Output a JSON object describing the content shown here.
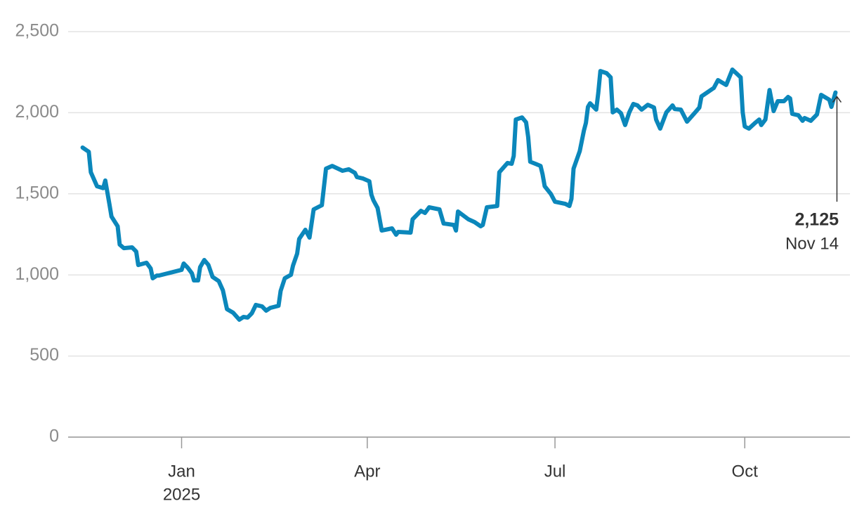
{
  "chart_data": {
    "type": "line",
    "x": [
      "2024-11-14",
      "2024-11-17",
      "2024-11-18",
      "2024-11-21",
      "2024-11-24",
      "2024-11-25",
      "2024-11-27",
      "2024-11-28",
      "2024-12-01",
      "2024-12-02",
      "2024-12-04",
      "2024-12-08",
      "2024-12-10",
      "2024-12-11",
      "2024-12-15",
      "2024-12-17",
      "2024-12-18",
      "2024-12-20",
      "2024-12-21",
      "2025-01-01",
      "2025-01-02",
      "2025-01-04",
      "2025-01-06",
      "2025-01-07",
      "2025-01-09",
      "2025-01-10",
      "2025-01-12",
      "2025-01-14",
      "2025-01-16",
      "2025-01-19",
      "2025-01-21",
      "2025-01-23",
      "2025-01-26",
      "2025-01-29",
      "2025-01-31",
      "2025-02-02",
      "2025-02-04",
      "2025-02-06",
      "2025-02-09",
      "2025-02-11",
      "2025-02-13",
      "2025-02-17",
      "2025-02-18",
      "2025-02-20",
      "2025-02-23",
      "2025-02-24",
      "2025-02-26",
      "2025-02-27",
      "2025-03-02",
      "2025-03-04",
      "2025-03-06",
      "2025-03-10",
      "2025-03-12",
      "2025-03-15",
      "2025-03-20",
      "2025-03-23",
      "2025-03-26",
      "2025-03-27",
      "2025-03-30",
      "2025-04-02",
      "2025-04-03",
      "2025-04-04",
      "2025-04-06",
      "2025-04-08",
      "2025-04-13",
      "2025-04-15",
      "2025-04-16",
      "2025-04-22",
      "2025-04-23",
      "2025-04-27",
      "2025-04-29",
      "2025-05-01",
      "2025-05-06",
      "2025-05-08",
      "2025-05-13",
      "2025-05-14",
      "2025-05-15",
      "2025-05-20",
      "2025-05-23",
      "2025-05-26",
      "2025-05-27",
      "2025-05-29",
      "2025-06-03",
      "2025-06-04",
      "2025-06-08",
      "2025-06-10",
      "2025-06-11",
      "2025-06-12",
      "2025-06-15",
      "2025-06-17",
      "2025-06-18",
      "2025-06-19",
      "2025-06-24",
      "2025-06-25",
      "2025-06-26",
      "2025-06-29",
      "2025-07-01",
      "2025-07-06",
      "2025-07-08",
      "2025-07-09",
      "2025-07-10",
      "2025-07-13",
      "2025-07-15",
      "2025-07-16",
      "2025-07-17",
      "2025-07-18",
      "2025-07-21",
      "2025-07-22",
      "2025-07-23",
      "2025-07-26",
      "2025-07-28",
      "2025-07-29",
      "2025-07-31",
      "2025-08-02",
      "2025-08-04",
      "2025-08-06",
      "2025-08-08",
      "2025-08-10",
      "2025-08-12",
      "2025-08-15",
      "2025-08-18",
      "2025-08-19",
      "2025-08-21",
      "2025-08-24",
      "2025-08-27",
      "2025-08-28",
      "2025-08-31",
      "2025-09-03",
      "2025-09-07",
      "2025-09-09",
      "2025-09-10",
      "2025-09-13",
      "2025-09-16",
      "2025-09-18",
      "2025-09-22",
      "2025-09-25",
      "2025-09-29",
      "2025-09-30",
      "2025-10-01",
      "2025-10-03",
      "2025-10-06",
      "2025-10-08",
      "2025-10-09",
      "2025-10-11",
      "2025-10-13",
      "2025-10-15",
      "2025-10-17",
      "2025-10-20",
      "2025-10-22",
      "2025-10-23",
      "2025-10-24",
      "2025-10-27",
      "2025-10-29",
      "2025-10-30",
      "2025-11-02",
      "2025-11-05",
      "2025-11-07",
      "2025-11-11",
      "2025-11-12",
      "2025-11-14"
    ],
    "series": [
      {
        "color": "#0b87bb",
        "values": [
          1785,
          1759,
          1633,
          1547,
          1535,
          1582,
          1438,
          1360,
          1300,
          1187,
          1165,
          1170,
          1144,
          1061,
          1075,
          1040,
          979,
          996,
          996,
          1031,
          1070,
          1044,
          1010,
          966,
          966,
          1048,
          1092,
          1061,
          988,
          962,
          905,
          789,
          767,
          724,
          741,
          737,
          763,
          815,
          806,
          780,
          797,
          810,
          901,
          979,
          1001,
          1057,
          1131,
          1222,
          1278,
          1230,
          1404,
          1430,
          1655,
          1672,
          1642,
          1651,
          1629,
          1603,
          1594,
          1577,
          1495,
          1460,
          1413,
          1274,
          1287,
          1248,
          1265,
          1261,
          1343,
          1395,
          1382,
          1417,
          1404,
          1317,
          1308,
          1274,
          1391,
          1343,
          1326,
          1300,
          1308,
          1417,
          1425,
          1633,
          1690,
          1685,
          1733,
          1958,
          1971,
          1941,
          1850,
          1698,
          1672,
          1620,
          1547,
          1499,
          1451,
          1438,
          1425,
          1469,
          1655,
          1763,
          1889,
          1937,
          2036,
          2058,
          2019,
          2123,
          2257,
          2244,
          2218,
          2002,
          2019,
          1997,
          1924,
          2002,
          2054,
          2045,
          2019,
          2049,
          2032,
          1958,
          1902,
          2002,
          2045,
          2023,
          2019,
          1945,
          2002,
          2032,
          2101,
          2127,
          2153,
          2201,
          2171,
          2266,
          2218,
          2002,
          1915,
          1902,
          1937,
          1958,
          1924,
          1958,
          2140,
          2010,
          2071,
          2071,
          2097,
          2088,
          1993,
          1984,
          1950,
          1967,
          1950,
          1989,
          2110,
          2080,
          2036,
          2125
        ]
      }
    ],
    "xlim": [
      "2024-11-07",
      "2025-11-21"
    ],
    "xticks": [
      {
        "value": "2025-01-01",
        "label": "Jan",
        "sublabel": "2025"
      },
      {
        "value": "2025-04-01",
        "label": "Apr"
      },
      {
        "value": "2025-07-01",
        "label": "Jul"
      },
      {
        "value": "2025-10-01",
        "label": "Oct"
      }
    ],
    "ylim": [
      0,
      2500
    ],
    "yticks": [
      0,
      500,
      {
        "value": 1000,
        "label": "1,000"
      },
      {
        "value": 1500,
        "label": "1,500"
      },
      {
        "value": 2000,
        "label": "2,000"
      },
      {
        "value": 2500,
        "label": "2,500"
      }
    ],
    "grid": true,
    "annotation": {
      "value_label": "2,125",
      "date_label": "Nov 14"
    }
  }
}
